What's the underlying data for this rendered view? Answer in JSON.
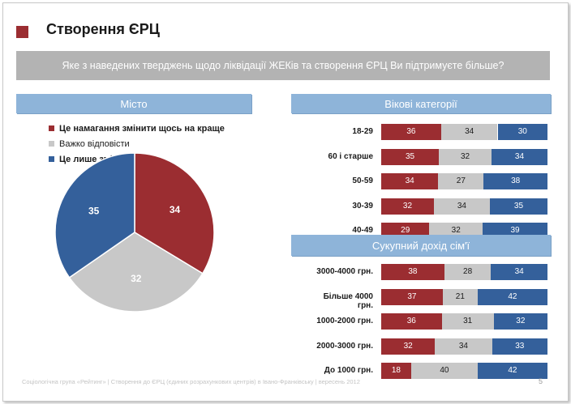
{
  "title": "Створення ЄРЦ",
  "question": "Яке з наведених тверджень щодо ліквідації ЖЕКів та створення ЄРЦ Ви підтримуєте більше?",
  "colors": {
    "red": "#9b2d31",
    "gray": "#c8c8c8",
    "blue": "#34609b"
  },
  "legend": [
    {
      "label": "Це намагання змінити щось на краще",
      "color": "#9b2d31"
    },
    {
      "label": "Важко відповісти",
      "color": "#c8c8c8"
    },
    {
      "label": "Це лише зміна вивісок",
      "color": "#34609b"
    }
  ],
  "chart_data": [
    {
      "type": "pie",
      "title": "Місто",
      "labels": [
        "Це намагання змінити щось на краще",
        "Важко відповісти",
        "Це лише зміна вивісок"
      ],
      "values": [
        34,
        32,
        35
      ]
    },
    {
      "type": "bar",
      "orientation": "horizontal-stacked",
      "title": "Вікові категорії",
      "categories": [
        "18-29",
        "60 і старше",
        "50-59",
        "30-39",
        "40-49"
      ],
      "series": [
        {
          "name": "Це намагання змінити щось на краще",
          "values": [
            36,
            35,
            34,
            32,
            29
          ]
        },
        {
          "name": "Важко відповісти",
          "values": [
            34,
            32,
            27,
            34,
            32
          ]
        },
        {
          "name": "Це лише зміна вивісок",
          "values": [
            30,
            34,
            38,
            35,
            39
          ]
        }
      ],
      "xlim": [
        0,
        100
      ]
    },
    {
      "type": "bar",
      "orientation": "horizontal-stacked",
      "title": "Сукупний дохід сім'ї",
      "categories": [
        "3000-4000 грн.",
        "Більше 4000 грн.",
        "1000-2000 грн.",
        "2000-3000 грн.",
        "До 1000 грн."
      ],
      "series": [
        {
          "name": "Це намагання змінити щось на краще",
          "values": [
            38,
            37,
            36,
            32,
            18
          ]
        },
        {
          "name": "Важко відповісти",
          "values": [
            28,
            21,
            31,
            34,
            40
          ]
        },
        {
          "name": "Це лише зміна вивісок",
          "values": [
            34,
            42,
            32,
            33,
            42
          ]
        }
      ],
      "xlim": [
        0,
        100
      ]
    }
  ],
  "footer": "Соціологічна група «Рейтинг» | Створення до ЄРЦ (єдиних розрахункових центрів) в Івано-Франківську | вересень 2012",
  "page_number": "5"
}
